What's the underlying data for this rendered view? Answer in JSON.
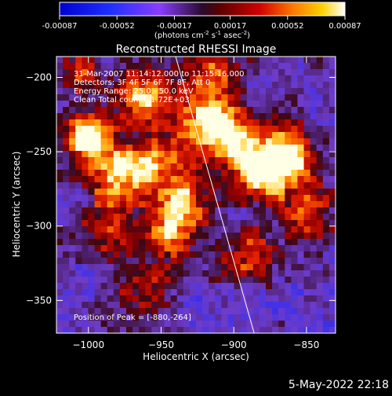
{
  "colors": {
    "background": "#000000",
    "text": "#ffffff",
    "limb_line": "#ffffff"
  },
  "colorbar": {
    "ticks": [
      "-0.00087",
      "-0.00052",
      "-0.00017",
      "0.00017",
      "0.00052",
      "0.00087"
    ],
    "tick_values": [
      -0.00087,
      -0.00052,
      -0.00017,
      0.00017,
      0.00052,
      0.00087
    ],
    "range": [
      -0.00087,
      0.00087
    ],
    "units_line1": "(photons cm",
    "units_sup1": "-2",
    "units_line2": " s",
    "units_sup2": "-1",
    "units_line3": " asec",
    "units_sup3": "-2",
    "units_line4": ")"
  },
  "chart_data": {
    "type": "heatmap",
    "title": "Reconstructed RHESSI Image",
    "xlabel": "Heliocentric X (arcsec)",
    "ylabel": "Heliocentric Y (arcsec)",
    "xlim": [
      -1022,
      -830
    ],
    "ylim": [
      -372,
      -186
    ],
    "x_ticks": [
      -1000,
      -950,
      -900,
      -850
    ],
    "x_tick_labels": [
      "−1000",
      "−950",
      "−900",
      "−850"
    ],
    "y_ticks": [
      -200,
      -250,
      -300,
      -350
    ],
    "y_tick_labels": [
      "−200",
      "−250",
      "−300",
      "−350"
    ],
    "grid": false,
    "limb_line": [
      [
        -940,
        -186
      ],
      [
        -886,
        -372
      ]
    ],
    "bright_sources": [
      {
        "x": -1000,
        "y": -240,
        "strength": 1.0
      },
      {
        "x": -962,
        "y": -211,
        "strength": 0.8
      },
      {
        "x": -980,
        "y": -266,
        "strength": 0.85
      },
      {
        "x": -955,
        "y": -255,
        "strength": 0.7
      },
      {
        "x": -920,
        "y": -230,
        "strength": 0.9
      },
      {
        "x": -915,
        "y": -195,
        "strength": 0.65
      },
      {
        "x": -880,
        "y": -264,
        "strength": 1.0
      },
      {
        "x": -900,
        "y": -240,
        "strength": 0.85
      },
      {
        "x": -860,
        "y": -250,
        "strength": 0.8
      },
      {
        "x": -850,
        "y": -290,
        "strength": 0.6
      },
      {
        "x": -935,
        "y": -280,
        "strength": 0.75
      },
      {
        "x": -945,
        "y": -305,
        "strength": 0.75
      },
      {
        "x": -985,
        "y": -300,
        "strength": 0.55
      },
      {
        "x": -890,
        "y": -320,
        "strength": 0.6
      },
      {
        "x": -960,
        "y": -345,
        "strength": 0.45
      },
      {
        "x": -1010,
        "y": -195,
        "strength": 0.5
      }
    ],
    "annotations": [
      "31-Mar-2007 11:14:12.000 to 11:15:16.000",
      "Detectors: 3F 4F 5F 6F 7F 8F, Att 0",
      "Energy Range: 25.0 - 50.0 keV",
      "Clean     Total counts: 1.72E+03"
    ],
    "peak_text": "Position of Peak = [-880,-264]"
  },
  "footer": {
    "date": "5-May-2022 22:18"
  }
}
